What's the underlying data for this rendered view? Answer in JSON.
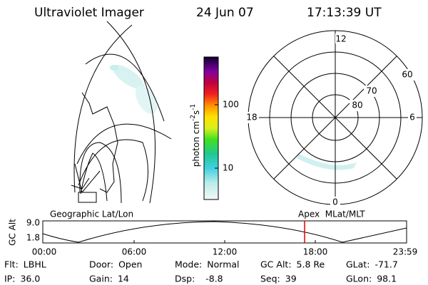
{
  "header": {
    "instrument": "Ultraviolet Imager",
    "date": "24 Jun 07",
    "time": "17:13:39 UT"
  },
  "colorbar": {
    "label": [
      "photon cm",
      "-2",
      "s",
      "-1"
    ],
    "ticks": [
      "100",
      "10"
    ]
  },
  "polar": {
    "mlt_labels": [
      "12",
      "18",
      "6",
      "0"
    ],
    "lat_labels": [
      "60",
      "70",
      "80"
    ]
  },
  "timeline": {
    "left_title": "Geographic Lat/Lon",
    "right_title": "Apex  MLat/MLT",
    "y_label": "GC Alt",
    "y_ticks": [
      "9.0",
      "1.8"
    ],
    "x_ticks": [
      "00:00",
      "06:00",
      "12:00",
      "18:00",
      "23:59"
    ]
  },
  "info": {
    "rows": [
      [
        [
          "Flt:",
          "LBHL"
        ],
        [
          "Door:",
          "Open"
        ],
        [
          "Mode:",
          "Normal"
        ],
        [
          "GC Alt:",
          "5.8 Re"
        ],
        [
          "GLat:",
          "-71.7"
        ]
      ],
      [
        [
          "IP:",
          "36.0"
        ],
        [
          "Gain:",
          "14"
        ],
        [
          "Dsp:",
          "  -8.8"
        ],
        [
          "Seq:",
          "39"
        ],
        [
          "GLon:",
          "98.1"
        ]
      ]
    ]
  }
}
